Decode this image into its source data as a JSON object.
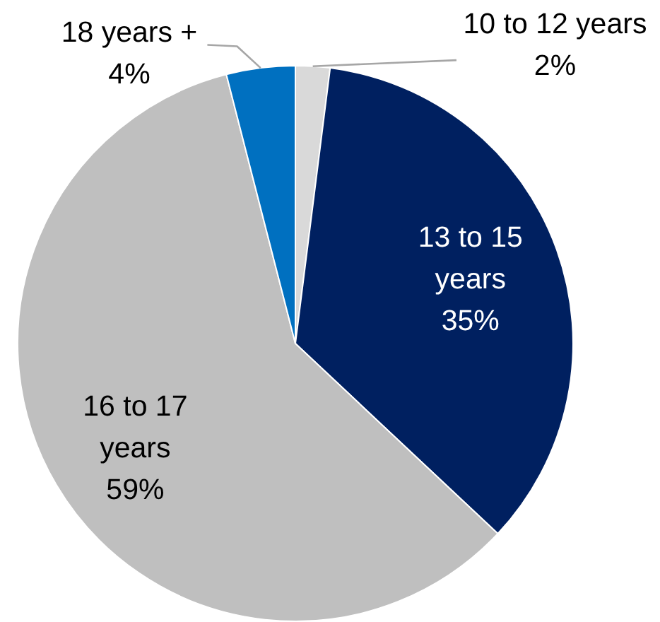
{
  "chart_data": {
    "type": "pie",
    "categories": [
      "10 to 12 years",
      "13 to 15 years",
      "16 to 17 years",
      "18 years +"
    ],
    "values": [
      2,
      35,
      59,
      4
    ],
    "colors": [
      "#d9d9d9",
      "#002060",
      "#bfbfbf",
      "#0070c0"
    ],
    "value_labels": [
      "2%",
      "35%",
      "59%",
      "4%"
    ]
  }
}
